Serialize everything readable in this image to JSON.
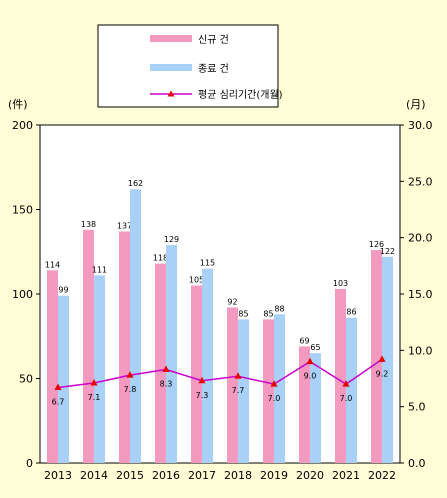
{
  "chart_data": {
    "type": "bar",
    "categories": [
      "2013",
      "2014",
      "2015",
      "2016",
      "2017",
      "2018",
      "2019",
      "2020",
      "2021",
      "2022"
    ],
    "series": [
      {
        "name": "신규 건",
        "type": "bar",
        "axis": "left",
        "color": "#f49ac1",
        "values": [
          114,
          138,
          137,
          118,
          105,
          92,
          85,
          69,
          103,
          126
        ],
        "labels": [
          "114",
          "138",
          "137",
          "118",
          "105",
          "92",
          "85",
          "69",
          "103",
          "126"
        ]
      },
      {
        "name": "종료 건",
        "type": "bar",
        "axis": "left",
        "color": "#a9d1f7",
        "values": [
          99,
          111,
          162,
          129,
          115,
          85,
          88,
          65,
          86,
          122
        ],
        "labels": [
          "99",
          "111",
          "162",
          "129",
          "115",
          "85",
          "88",
          "65",
          "86",
          "122"
        ]
      },
      {
        "name": "평균 심리기간(개월)",
        "type": "line",
        "axis": "right",
        "color": "#cc00cc",
        "marker_color": "#e60000",
        "values": [
          6.7,
          7.1,
          7.8,
          8.3,
          7.3,
          7.7,
          7.0,
          9.0,
          7.0,
          9.2
        ],
        "labels": [
          "6.7",
          "7.1",
          "7.8",
          "8.3",
          "7.3",
          "7.7",
          "7.0",
          "9.0",
          "7.0",
          "9.2"
        ]
      }
    ],
    "left_unit": "(件)",
    "right_unit": "(月)",
    "left_ticks": [
      "0",
      "50",
      "100",
      "150",
      "200"
    ],
    "right_ticks": [
      "0.0",
      "5.0",
      "10.0",
      "15.0",
      "20.0",
      "25.0",
      "30.0"
    ],
    "ylim_left": [
      0,
      200
    ],
    "ylim_right": [
      0,
      30
    ],
    "grid": false,
    "legend_position": "top-left"
  }
}
